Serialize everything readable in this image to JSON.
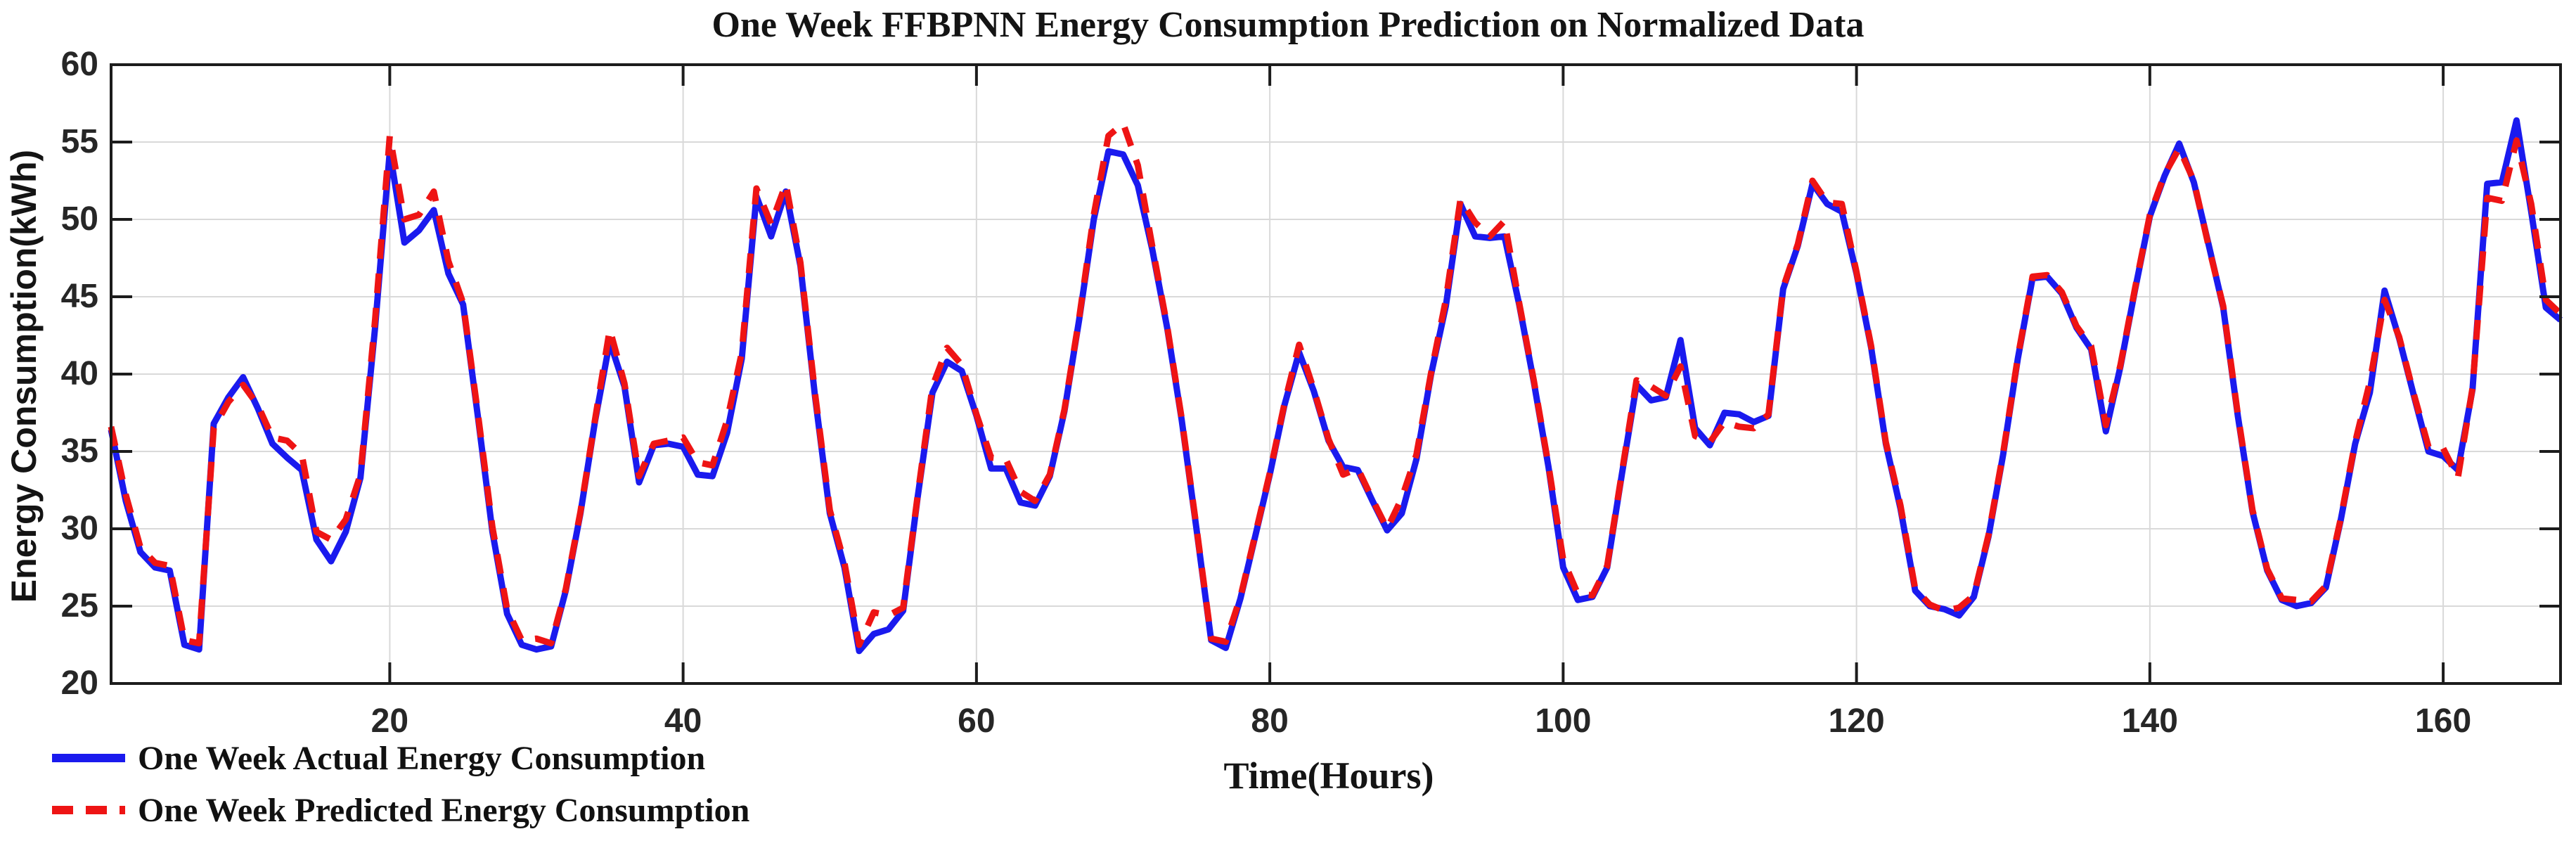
{
  "page": {
    "background": "#ffffff"
  },
  "chart_data": {
    "type": "line",
    "title": "One Week FFBPNN Energy Consumption Prediction on Normalized Data",
    "xlabel": "Time(Hours)",
    "ylabel": "Energy Consumption(kWh)",
    "x_range": [
      1,
      168
    ],
    "y_range": [
      20,
      60
    ],
    "x_ticks": [
      20,
      40,
      60,
      80,
      100,
      120,
      140,
      160
    ],
    "y_ticks": [
      20,
      25,
      30,
      35,
      40,
      45,
      50,
      55,
      60
    ],
    "grid": true,
    "legend_position": "bottom-left-outside",
    "axis_color": "#1c1c1c",
    "grid_color": "#d9d9d9",
    "x_start": 1,
    "x_step": 1,
    "series": [
      {
        "name": "One Week Actual Energy Consumption",
        "color": "#1a1aee",
        "style": "solid",
        "values": [
          36.4,
          31.8,
          28.5,
          27.5,
          27.3,
          22.5,
          22.2,
          36.8,
          38.5,
          39.8,
          37.8,
          35.5,
          34.6,
          33.8,
          29.3,
          27.9,
          29.8,
          33.3,
          43.0,
          54.4,
          48.5,
          49.3,
          50.6,
          46.5,
          44.5,
          37.3,
          29.8,
          24.5,
          22.5,
          22.2,
          22.4,
          26.0,
          31.0,
          37.0,
          42.1,
          39.2,
          33.0,
          35.4,
          35.5,
          35.3,
          33.5,
          33.4,
          36.2,
          41.0,
          51.5,
          48.9,
          51.8,
          47.0,
          38.5,
          31.0,
          27.5,
          22.1,
          23.2,
          23.5,
          24.7,
          32.1,
          38.8,
          40.8,
          40.2,
          37.3,
          33.9,
          33.9,
          31.7,
          31.5,
          33.4,
          37.6,
          43.5,
          50.0,
          54.4,
          54.2,
          52.2,
          48.0,
          43.0,
          37.0,
          30.0,
          22.8,
          22.3,
          25.5,
          29.5,
          33.5,
          38.0,
          41.4,
          38.9,
          35.7,
          34.0,
          33.8,
          31.8,
          29.9,
          31.0,
          34.5,
          40.0,
          44.4,
          51.0,
          48.9,
          48.8,
          48.9,
          44.5,
          39.5,
          34.0,
          27.5,
          25.4,
          25.6,
          27.5,
          33.5,
          39.3,
          38.3,
          38.5,
          42.2,
          36.5,
          35.4,
          37.5,
          37.4,
          36.9,
          37.3,
          45.5,
          48.3,
          52.3,
          51.0,
          50.5,
          46.5,
          41.7,
          35.5,
          31.3,
          26.0,
          25.0,
          24.8,
          24.4,
          25.6,
          29.5,
          34.8,
          41.0,
          46.2,
          46.3,
          45.2,
          43.0,
          41.6,
          36.3,
          40.5,
          45.5,
          50.2,
          52.8,
          54.9,
          52.4,
          48.4,
          44.3,
          37.3,
          31.1,
          27.3,
          25.4,
          25.0,
          25.2,
          26.2,
          30.5,
          35.5,
          38.8,
          45.4,
          42.3,
          38.6,
          35.0,
          34.7,
          33.8,
          39.0,
          52.3,
          52.4,
          56.4,
          50.5,
          44.3,
          43.5
        ]
      },
      {
        "name": "One Week Predicted Energy Consumption",
        "color": "#ee1414",
        "style": "dashed",
        "values": [
          36.6,
          32.2,
          28.8,
          27.8,
          27.6,
          22.8,
          22.6,
          36.5,
          38.2,
          39.3,
          38.0,
          35.9,
          35.7,
          34.8,
          29.8,
          29.3,
          30.6,
          33.5,
          43.5,
          55.4,
          50.0,
          50.3,
          51.8,
          47.3,
          44.6,
          37.5,
          30.1,
          24.8,
          22.8,
          22.9,
          22.6,
          26.1,
          31.1,
          37.1,
          42.9,
          39.4,
          33.4,
          35.5,
          35.7,
          35.9,
          34.3,
          34.1,
          37.0,
          41.4,
          52.0,
          49.7,
          52.3,
          47.2,
          38.7,
          31.2,
          27.8,
          22.5,
          24.6,
          24.4,
          24.9,
          32.2,
          39.2,
          41.7,
          40.6,
          37.4,
          34.6,
          34.5,
          32.4,
          31.8,
          33.5,
          37.7,
          43.6,
          50.3,
          55.4,
          56.2,
          53.5,
          48.2,
          43.1,
          37.1,
          30.1,
          22.9,
          22.7,
          25.6,
          29.6,
          33.6,
          38.1,
          41.9,
          39.0,
          35.8,
          33.5,
          33.9,
          31.9,
          30.0,
          32.0,
          34.8,
          40.1,
          44.8,
          51.3,
          49.8,
          48.9,
          49.9,
          44.6,
          39.6,
          34.1,
          28.0,
          25.8,
          25.7,
          27.6,
          33.6,
          39.6,
          39.2,
          38.6,
          40.5,
          36.0,
          35.6,
          36.9,
          36.6,
          36.5,
          37.4,
          45.6,
          48.4,
          52.5,
          51.1,
          51.0,
          46.6,
          41.8,
          35.6,
          31.5,
          26.1,
          25.1,
          24.7,
          24.9,
          25.7,
          29.6,
          34.9,
          41.1,
          46.3,
          46.4,
          45.3,
          43.1,
          41.8,
          36.7,
          40.6,
          45.6,
          50.3,
          52.9,
          54.6,
          52.5,
          48.3,
          44.4,
          37.4,
          31.2,
          27.4,
          25.5,
          25.4,
          25.3,
          26.3,
          30.6,
          35.6,
          39.5,
          44.8,
          42.4,
          38.7,
          35.3,
          35.2,
          33.3,
          39.1,
          51.4,
          51.2,
          55.1,
          51.0,
          44.8,
          43.9
        ]
      }
    ]
  }
}
